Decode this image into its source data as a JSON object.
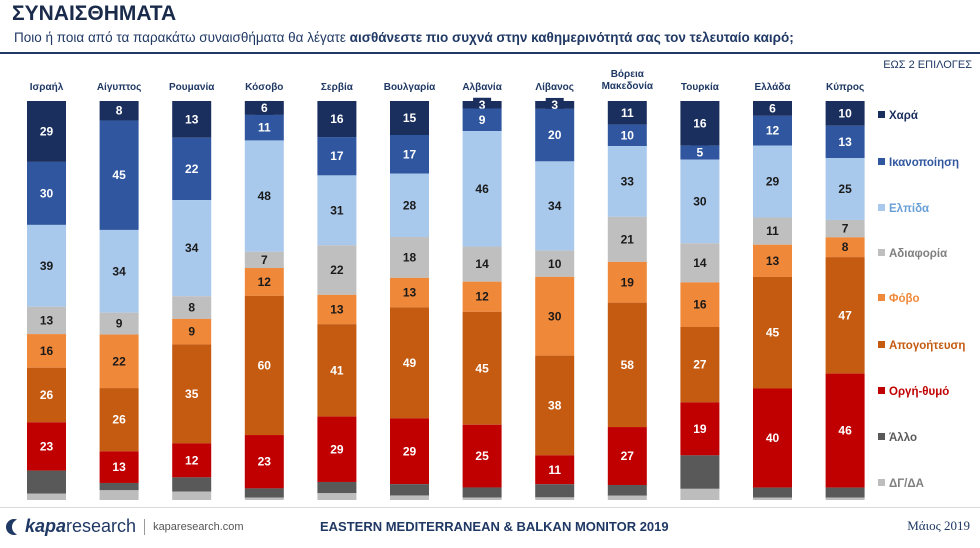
{
  "header": {
    "title": "ΣΥΝΑΙΣΘΗΜΑΤΑ",
    "subtitle_plain": "Ποιο ή ποια από τα παρακάτω συναισθήματα θα λέγατε ",
    "subtitle_bold": "αισθάνεστε πιο συχνά στην καθημερινότητά σας τον τελευταίο καιρό;",
    "note": "ΕΩΣ 2 ΕΠΙΛΟΓΕΣ"
  },
  "footer": {
    "brand_kapa": "kapa",
    "brand_research": "research",
    "url": "kaparesearch.com",
    "center": "EASTERN MEDITERRANEAN & BALKAN MONITOR 2019",
    "date": "Μάιος 2019"
  },
  "chart_data": {
    "type": "bar",
    "stacked": true,
    "categories": [
      "Ισραήλ",
      "Αίγυπτος",
      "Ρουμανία",
      "Κόσοβο",
      "Σερβία",
      "Βουλγαρία",
      "Αλβανία",
      "Λίβανος",
      "Βόρεια Μακεδονία",
      "Τουρκία",
      "Ελλάδα",
      "Κύπρος"
    ],
    "series": [
      {
        "name": "Χαρά",
        "color": "#1b2f5e",
        "values": [
          29,
          8,
          13,
          6,
          16,
          15,
          3,
          3,
          11,
          16,
          6,
          10
        ]
      },
      {
        "name": "Ικανοποίηση",
        "color": "#2f569f",
        "values": [
          30,
          45,
          22,
          11,
          17,
          17,
          9,
          20,
          10,
          5,
          12,
          13
        ]
      },
      {
        "name": "Ελπίδα",
        "color": "#a8c8ec",
        "values": [
          39,
          34,
          34,
          48,
          31,
          28,
          46,
          34,
          33,
          30,
          29,
          25
        ]
      },
      {
        "name": "Αδιαφορία",
        "color": "#bfbfbf",
        "values": [
          13,
          9,
          8,
          7,
          22,
          18,
          14,
          10,
          21,
          14,
          11,
          7
        ]
      },
      {
        "name": "Φόβο",
        "color": "#f0883a",
        "values": [
          16,
          22,
          9,
          12,
          13,
          13,
          12,
          30,
          19,
          16,
          13,
          8
        ]
      },
      {
        "name": "Απογοήτευση",
        "color": "#c55a11",
        "values": [
          26,
          26,
          35,
          60,
          41,
          49,
          45,
          38,
          58,
          27,
          45,
          47
        ]
      },
      {
        "name": "Οργή-θυμό",
        "color": "#c00000",
        "values": [
          23,
          13,
          12,
          23,
          29,
          29,
          25,
          11,
          27,
          19,
          40,
          46
        ]
      },
      {
        "name": "Άλλο",
        "color": "#595959",
        "values": [
          11,
          3,
          5,
          4,
          5,
          5,
          4,
          5,
          5,
          12,
          4,
          4
        ]
      },
      {
        "name": "ΔΓ/ΔΑ",
        "color": "#bdbdbd",
        "values": [
          3,
          4,
          3,
          1,
          3,
          2,
          1,
          1,
          2,
          4,
          1,
          1
        ]
      }
    ]
  }
}
